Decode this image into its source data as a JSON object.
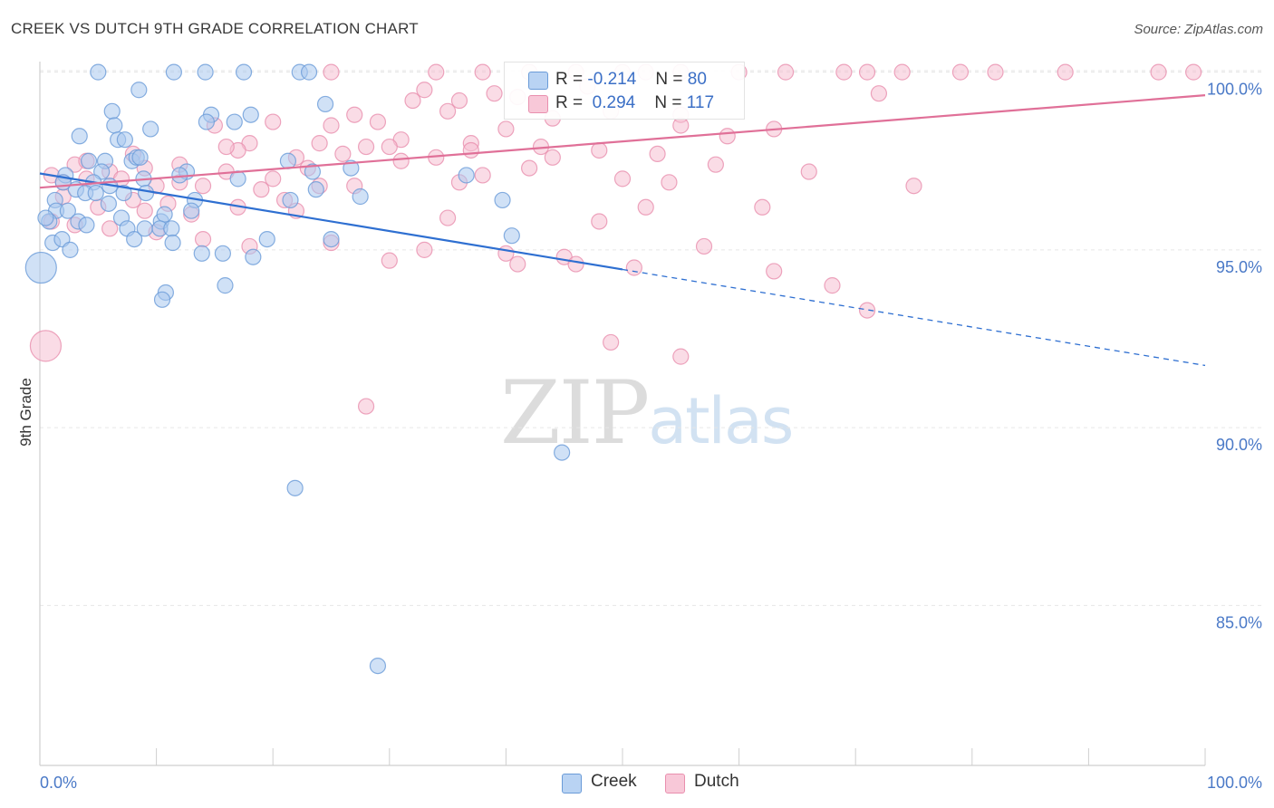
{
  "header": {
    "title": "CREEK VS DUTCH 9TH GRADE CORRELATION CHART",
    "source": "Source: ZipAtlas.com"
  },
  "watermark": {
    "part1": "ZIP",
    "part2": "atlas"
  },
  "legend": {
    "creek": {
      "r_label": "R =",
      "r_value": "-0.214",
      "n_label": "N =",
      "n_value": "80"
    },
    "dutch": {
      "r_label": "R =",
      "r_value": "0.294",
      "n_label": "N =",
      "n_value": "117"
    }
  },
  "bottom_legend": {
    "creek": "Creek",
    "dutch": "Dutch"
  },
  "colors": {
    "creek_fill": "#a9c8ef",
    "creek_stroke": "#6a9bd8",
    "creek_line": "#2e6fd1",
    "dutch_fill": "#f6bfd1",
    "dutch_stroke": "#e98fae",
    "dutch_line": "#e07098",
    "tick_label": "#4a79c7",
    "grid": "#e6e6e6"
  },
  "chart_data": {
    "type": "scatter",
    "title": "CREEK VS DUTCH 9TH GRADE CORRELATION CHART",
    "xlabel": "",
    "ylabel": "9th Grade",
    "xlim": [
      0,
      100
    ],
    "ylim": [
      80.5,
      100.5
    ],
    "x_tick_labels": [
      "0.0%",
      "100.0%"
    ],
    "y_ticks": [
      100,
      95,
      90,
      85
    ],
    "y_tick_labels": [
      "100.0%",
      "95.0%",
      "90.0%",
      "85.0%"
    ],
    "grid": true,
    "series": [
      {
        "name": "Creek",
        "r": -0.214,
        "n": 80,
        "trend": {
          "x0": 0,
          "y0": 97.15,
          "x1": 50,
          "y1": 94.45,
          "dashed_to_x": 100,
          "dashed_to_y": 91.75
        },
        "points": [
          [
            5,
            100
          ],
          [
            11.5,
            100
          ],
          [
            14.2,
            100
          ],
          [
            17.5,
            100
          ],
          [
            22.3,
            100
          ],
          [
            23.1,
            100
          ],
          [
            8.5,
            99.5
          ],
          [
            24.5,
            99.1
          ],
          [
            6.2,
            98.9
          ],
          [
            14.7,
            98.8
          ],
          [
            18.1,
            98.8
          ],
          [
            6.4,
            98.5
          ],
          [
            16.7,
            98.6
          ],
          [
            9.5,
            98.4
          ],
          [
            14.3,
            98.6
          ],
          [
            3.4,
            98.2
          ],
          [
            6.7,
            98.1
          ],
          [
            7.3,
            98.1
          ],
          [
            5.6,
            97.5
          ],
          [
            4.2,
            97.5
          ],
          [
            7.9,
            97.5
          ],
          [
            8.3,
            97.6
          ],
          [
            2.2,
            97.1
          ],
          [
            5.3,
            97.2
          ],
          [
            12.6,
            97.2
          ],
          [
            23.4,
            97.2
          ],
          [
            17.0,
            97.0
          ],
          [
            26.7,
            97.3
          ],
          [
            21.3,
            97.5
          ],
          [
            4.6,
            96.9
          ],
          [
            3.1,
            96.7
          ],
          [
            7.2,
            96.6
          ],
          [
            8.9,
            97.0
          ],
          [
            23.7,
            96.7
          ],
          [
            36.6,
            97.1
          ],
          [
            1.3,
            96.4
          ],
          [
            3.9,
            96.6
          ],
          [
            4.8,
            96.6
          ],
          [
            9.1,
            96.6
          ],
          [
            13.3,
            96.4
          ],
          [
            21.5,
            96.4
          ],
          [
            27.5,
            96.5
          ],
          [
            39.7,
            96.4
          ],
          [
            1.4,
            96.1
          ],
          [
            2.4,
            96.1
          ],
          [
            5.9,
            96.3
          ],
          [
            10.4,
            95.8
          ],
          [
            10.7,
            96.0
          ],
          [
            13.0,
            96.1
          ],
          [
            0.8,
            95.8
          ],
          [
            3.3,
            95.8
          ],
          [
            4.0,
            95.7
          ],
          [
            7.0,
            95.9
          ],
          [
            7.5,
            95.6
          ],
          [
            8.1,
            95.3
          ],
          [
            9.0,
            95.6
          ],
          [
            10.3,
            95.6
          ],
          [
            11.3,
            95.6
          ],
          [
            1.1,
            95.2
          ],
          [
            1.9,
            95.3
          ],
          [
            11.4,
            95.2
          ],
          [
            19.5,
            95.3
          ],
          [
            25.0,
            95.3
          ],
          [
            40.5,
            95.4
          ],
          [
            2.6,
            95.0
          ],
          [
            13.9,
            94.9
          ],
          [
            15.7,
            94.9
          ],
          [
            18.3,
            94.8
          ],
          [
            0.1,
            94.5
          ],
          [
            15.9,
            94.0
          ],
          [
            10.8,
            93.8
          ],
          [
            10.5,
            93.6
          ],
          [
            44.8,
            89.3
          ],
          [
            21.9,
            88.3
          ],
          [
            29.0,
            83.3
          ],
          [
            0.5,
            95.9
          ],
          [
            6.0,
            96.8
          ],
          [
            2.0,
            96.9
          ],
          [
            12.0,
            97.1
          ],
          [
            8.6,
            97.6
          ]
        ]
      },
      {
        "name": "Dutch",
        "r": 0.294,
        "n": 117,
        "trend": {
          "x0": 0,
          "y0": 96.75,
          "x1": 100,
          "y1": 99.35
        },
        "points": [
          [
            25,
            100
          ],
          [
            34,
            100
          ],
          [
            38,
            100
          ],
          [
            42,
            100
          ],
          [
            46,
            100
          ],
          [
            50,
            100
          ],
          [
            52,
            100
          ],
          [
            55,
            100
          ],
          [
            60,
            100
          ],
          [
            64,
            100
          ],
          [
            69,
            100
          ],
          [
            71,
            100
          ],
          [
            74,
            100
          ],
          [
            79,
            100
          ],
          [
            82,
            100
          ],
          [
            88,
            100
          ],
          [
            96,
            100
          ],
          [
            99,
            100
          ],
          [
            47,
            99.6
          ],
          [
            39,
            99.4
          ],
          [
            33,
            99.5
          ],
          [
            41,
            99.3
          ],
          [
            72,
            99.4
          ],
          [
            32,
            99.2
          ],
          [
            36,
            99.2
          ],
          [
            35,
            98.9
          ],
          [
            44,
            98.7
          ],
          [
            49,
            98.9
          ],
          [
            55,
            98.8
          ],
          [
            27,
            98.8
          ],
          [
            29,
            98.6
          ],
          [
            20,
            98.6
          ],
          [
            15,
            98.5
          ],
          [
            25,
            98.5
          ],
          [
            40,
            98.4
          ],
          [
            55,
            98.5
          ],
          [
            63,
            98.4
          ],
          [
            59,
            98.2
          ],
          [
            31,
            98.1
          ],
          [
            18,
            98.0
          ],
          [
            24,
            98.0
          ],
          [
            28,
            97.9
          ],
          [
            37,
            98.0
          ],
          [
            30,
            97.9
          ],
          [
            43,
            97.9
          ],
          [
            48,
            97.8
          ],
          [
            17,
            97.8
          ],
          [
            22,
            97.6
          ],
          [
            26,
            97.7
          ],
          [
            34,
            97.6
          ],
          [
            12,
            97.4
          ],
          [
            16,
            97.2
          ],
          [
            20,
            97.0
          ],
          [
            24,
            96.8
          ],
          [
            9,
            97.3
          ],
          [
            6,
            97.2
          ],
          [
            3,
            97.4
          ],
          [
            1,
            97.1
          ],
          [
            4,
            97.0
          ],
          [
            7,
            97.0
          ],
          [
            10,
            96.8
          ],
          [
            14,
            96.8
          ],
          [
            19,
            96.7
          ],
          [
            21,
            96.4
          ],
          [
            27,
            96.8
          ],
          [
            36,
            96.9
          ],
          [
            38,
            97.1
          ],
          [
            42,
            97.3
          ],
          [
            50,
            97.0
          ],
          [
            54,
            96.9
          ],
          [
            2,
            96.5
          ],
          [
            5,
            96.2
          ],
          [
            8,
            96.4
          ],
          [
            11,
            96.3
          ],
          [
            13,
            96.0
          ],
          [
            17,
            96.2
          ],
          [
            22,
            96.1
          ],
          [
            35,
            95.9
          ],
          [
            48,
            95.8
          ],
          [
            52,
            96.2
          ],
          [
            62,
            96.2
          ],
          [
            1,
            95.8
          ],
          [
            3,
            95.7
          ],
          [
            6,
            95.6
          ],
          [
            10,
            95.5
          ],
          [
            14,
            95.3
          ],
          [
            18,
            95.1
          ],
          [
            25,
            95.2
          ],
          [
            33,
            95.0
          ],
          [
            40,
            94.9
          ],
          [
            45,
            94.8
          ],
          [
            57,
            95.1
          ],
          [
            30,
            94.7
          ],
          [
            41,
            94.6
          ],
          [
            46,
            94.6
          ],
          [
            51,
            94.5
          ],
          [
            63,
            94.4
          ],
          [
            68,
            94.0
          ],
          [
            71,
            93.3
          ],
          [
            49,
            92.4
          ],
          [
            55,
            92.0
          ],
          [
            0.5,
            92.3
          ],
          [
            28,
            90.6
          ],
          [
            4,
            97.5
          ],
          [
            8,
            97.7
          ],
          [
            12,
            96.9
          ],
          [
            16,
            97.9
          ],
          [
            23,
            97.3
          ],
          [
            31,
            97.5
          ],
          [
            37,
            97.8
          ],
          [
            44,
            97.6
          ],
          [
            53,
            97.7
          ],
          [
            58,
            97.4
          ],
          [
            66,
            97.2
          ],
          [
            75,
            96.8
          ],
          [
            2,
            96.9
          ],
          [
            9,
            96.1
          ]
        ]
      }
    ]
  }
}
